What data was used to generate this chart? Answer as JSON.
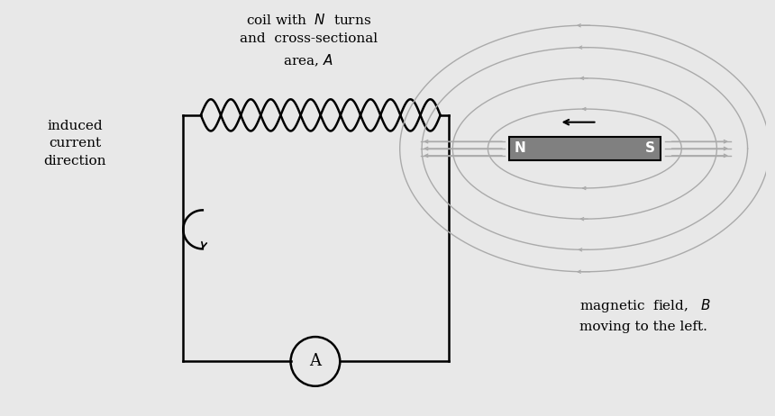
{
  "bg_color": "#e8e8e8",
  "line_color": "#000000",
  "magnet_color": "#808080",
  "field_line_color": "#aaaaaa",
  "coil_color": "#000000",
  "box_color": "#000000",
  "text_color": "#000000",
  "title_coil": "coil with  $N$  turns\nand  cross-sectional\narea, $A$",
  "label_induced": "induced\ncurrent\ndirection",
  "label_magfield": "magnetic  field,   $B$\nmoving to the left.",
  "label_N": "N",
  "label_S": "S",
  "label_A": "A",
  "fig_width": 8.6,
  "fig_height": 4.62,
  "dpi": 100
}
